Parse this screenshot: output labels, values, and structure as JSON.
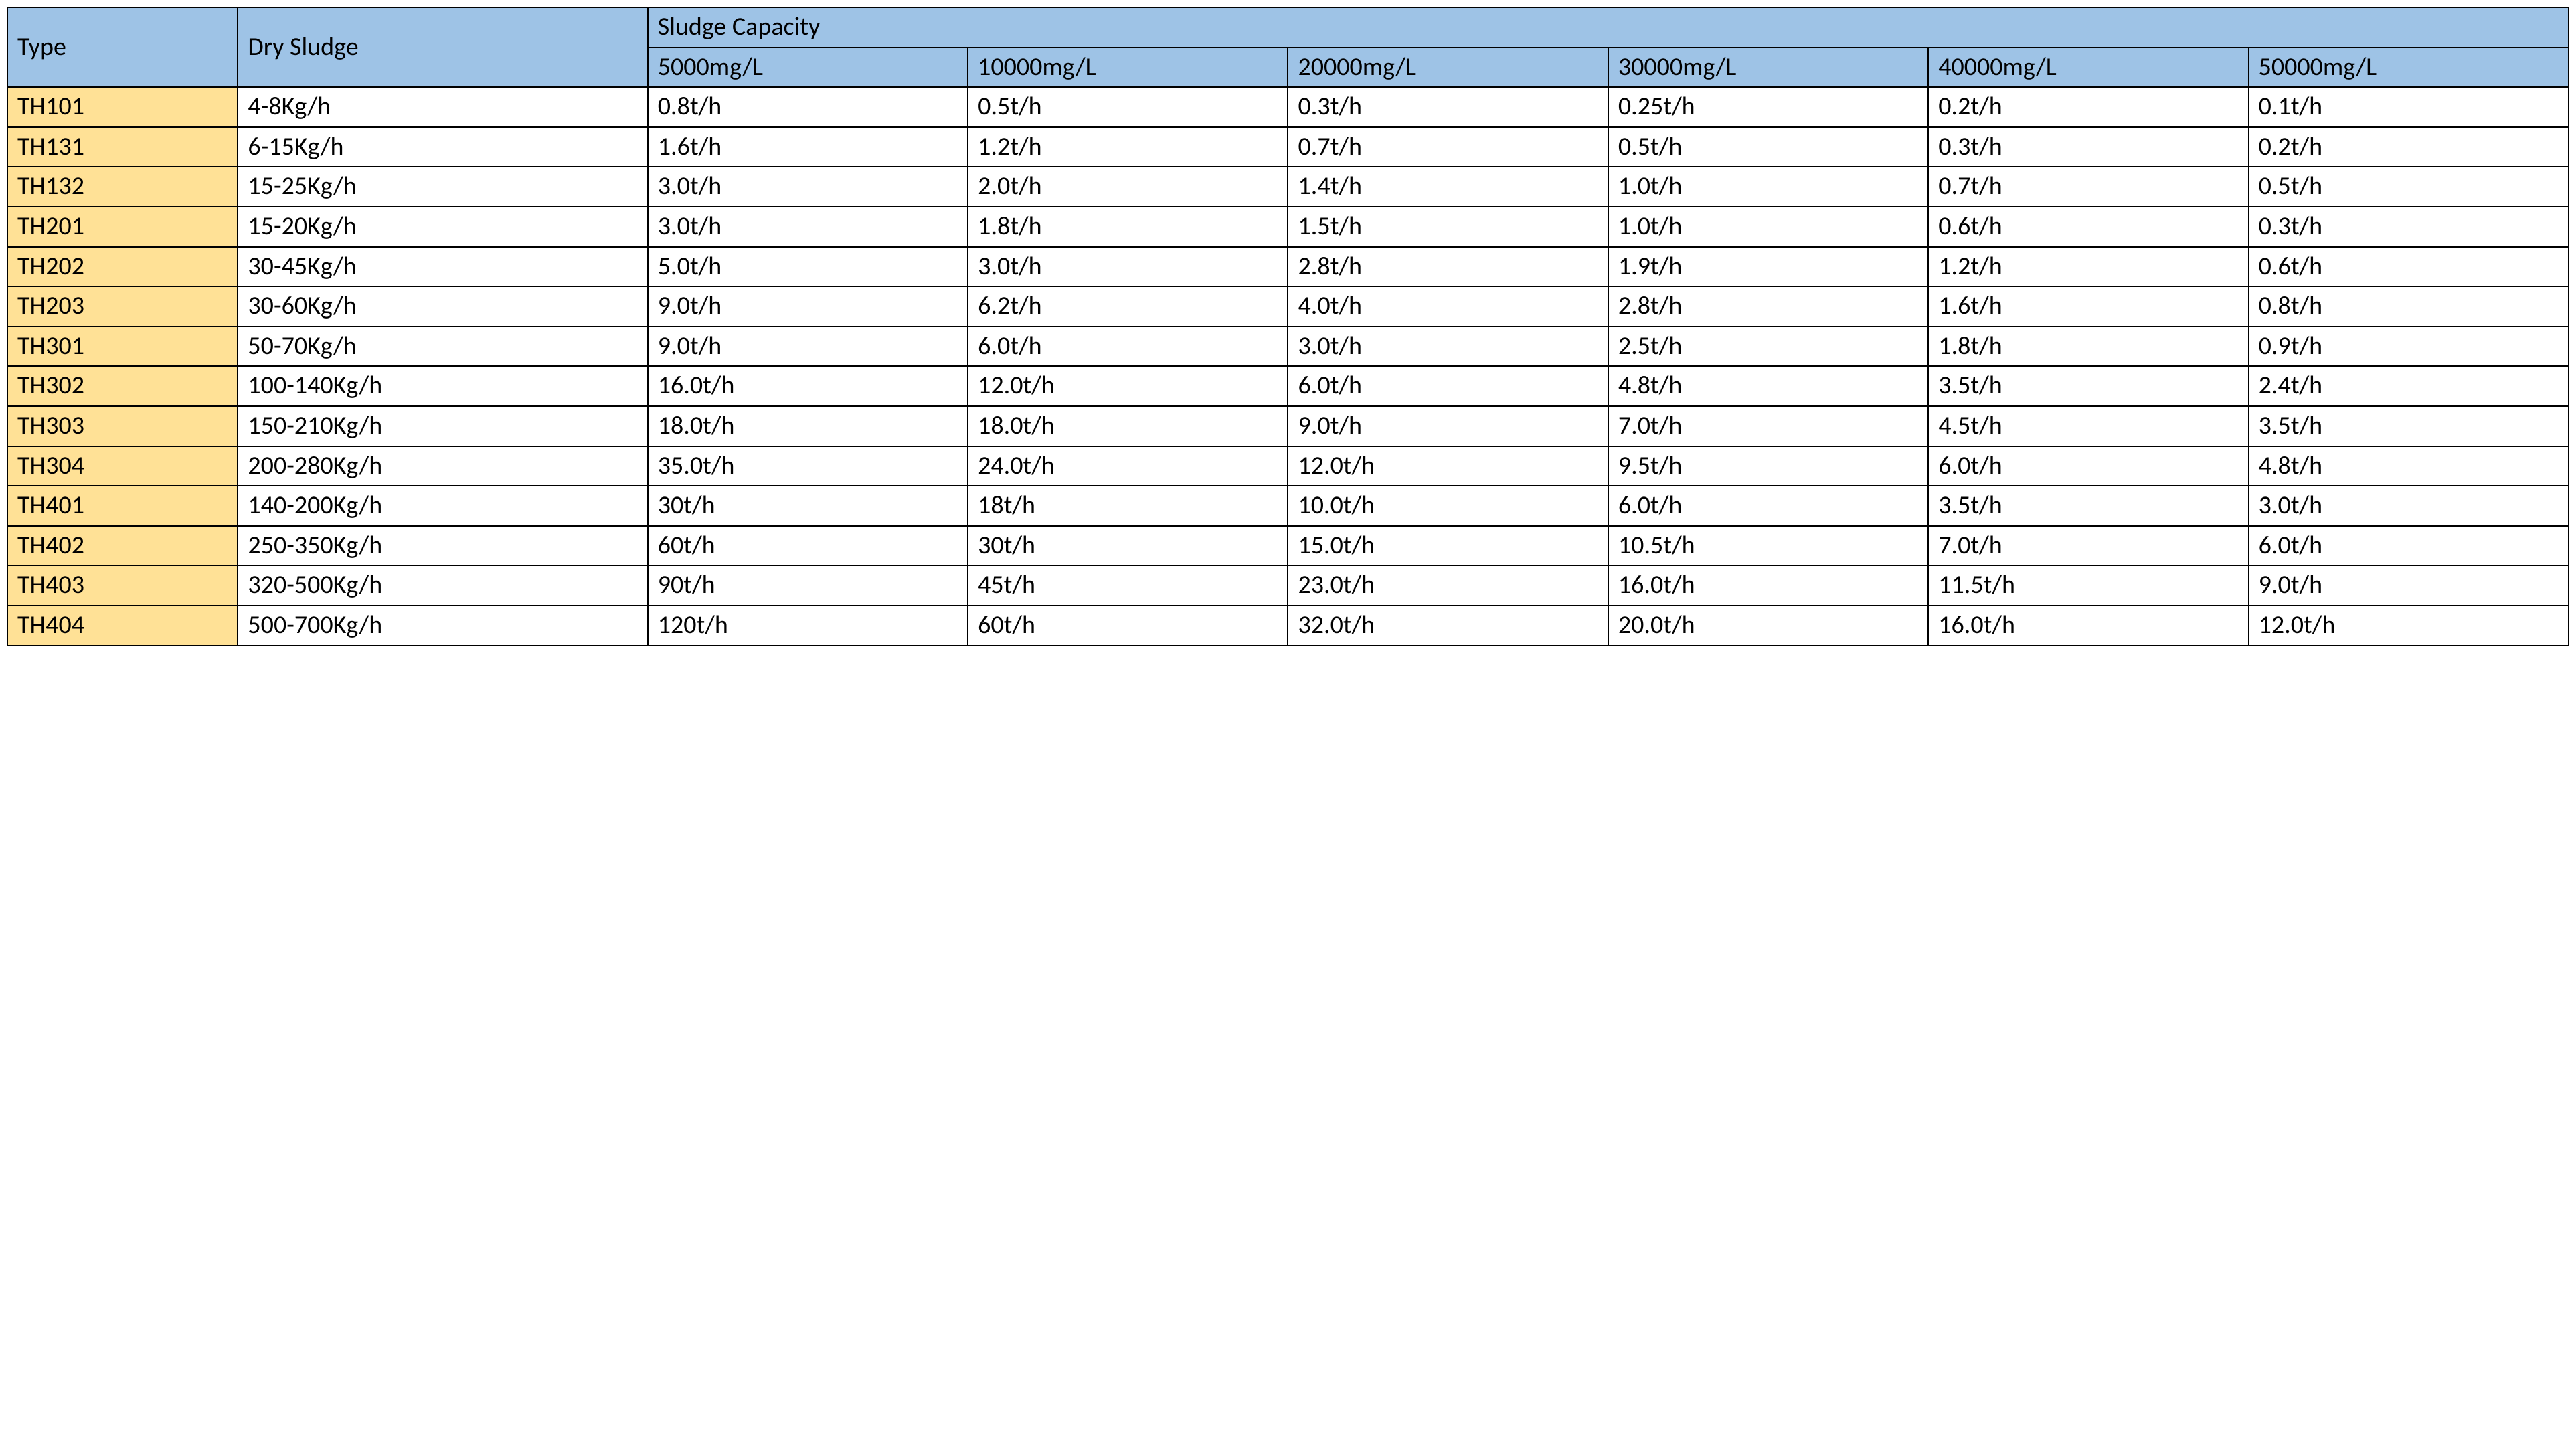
{
  "table": {
    "colors": {
      "header_bg": "#9ec3e6",
      "type_bg": "#ffe196",
      "border": "#000000",
      "text": "#000000",
      "page_bg": "#ffffff"
    },
    "fonts": {
      "base_family": "Calibri",
      "type_header_size_pt": 40,
      "dry_sludge_size_pt": 54,
      "capacity_title_size_pt": 42,
      "sub_header_size_pt": 30,
      "cell_size_pt": 38
    },
    "headers": {
      "type": "Type",
      "dry_sludge": "Dry Sludge",
      "capacity_title": "Sludge Capacity",
      "capacity_columns": [
        "5000mg/L",
        "10000mg/L",
        "20000mg/L",
        "30000mg/L",
        "40000mg/L",
        "50000mg/L"
      ]
    },
    "column_widths_pct": {
      "type": 9,
      "dry_sludge": 16,
      "capacity_each": 12.5
    },
    "rows": [
      {
        "type": "TH101",
        "dry": "4-8Kg/h",
        "cap": [
          "0.8t/h",
          "0.5t/h",
          "0.3t/h",
          "0.25t/h",
          "0.2t/h",
          "0.1t/h"
        ]
      },
      {
        "type": "TH131",
        "dry": "6-15Kg/h",
        "cap": [
          "1.6t/h",
          "1.2t/h",
          "0.7t/h",
          "0.5t/h",
          "0.3t/h",
          "0.2t/h"
        ]
      },
      {
        "type": "TH132",
        "dry": "15-25Kg/h",
        "cap": [
          "3.0t/h",
          "2.0t/h",
          "1.4t/h",
          "1.0t/h",
          "0.7t/h",
          "0.5t/h"
        ]
      },
      {
        "type": "TH201",
        "dry": "15-20Kg/h",
        "cap": [
          "3.0t/h",
          "1.8t/h",
          "1.5t/h",
          "1.0t/h",
          "0.6t/h",
          "0.3t/h"
        ]
      },
      {
        "type": "TH202",
        "dry": "30-45Kg/h",
        "cap": [
          "5.0t/h",
          "3.0t/h",
          "2.8t/h",
          "1.9t/h",
          "1.2t/h",
          "0.6t/h"
        ]
      },
      {
        "type": "TH203",
        "dry": "30-60Kg/h",
        "cap": [
          "9.0t/h",
          "6.2t/h",
          "4.0t/h",
          "2.8t/h",
          "1.6t/h",
          "0.8t/h"
        ]
      },
      {
        "type": "TH301",
        "dry": "50-70Kg/h",
        "cap": [
          "9.0t/h",
          "6.0t/h",
          "3.0t/h",
          "2.5t/h",
          "1.8t/h",
          "0.9t/h"
        ]
      },
      {
        "type": "TH302",
        "dry": "100-140Kg/h",
        "cap": [
          "16.0t/h",
          "12.0t/h",
          "6.0t/h",
          "4.8t/h",
          "3.5t/h",
          "2.4t/h"
        ]
      },
      {
        "type": "TH303",
        "dry": "150-210Kg/h",
        "cap": [
          "18.0t/h",
          "18.0t/h",
          "9.0t/h",
          "7.0t/h",
          "4.5t/h",
          "3.5t/h"
        ]
      },
      {
        "type": "TH304",
        "dry": "200-280Kg/h",
        "cap": [
          "35.0t/h",
          "24.0t/h",
          "12.0t/h",
          "9.5t/h",
          "6.0t/h",
          "4.8t/h"
        ]
      },
      {
        "type": "TH401",
        "dry": "140-200Kg/h",
        "cap": [
          "30t/h",
          "18t/h",
          "10.0t/h",
          "6.0t/h",
          "3.5t/h",
          "3.0t/h"
        ]
      },
      {
        "type": "TH402",
        "dry": "250-350Kg/h",
        "cap": [
          "60t/h",
          "30t/h",
          "15.0t/h",
          "10.5t/h",
          "7.0t/h",
          "6.0t/h"
        ]
      },
      {
        "type": "TH403",
        "dry": "320-500Kg/h",
        "cap": [
          "90t/h",
          "45t/h",
          "23.0t/h",
          "16.0t/h",
          "11.5t/h",
          "9.0t/h"
        ]
      },
      {
        "type": "TH404",
        "dry": "500-700Kg/h",
        "cap": [
          "120t/h",
          "60t/h",
          "32.0t/h",
          "20.0t/h",
          "16.0t/h",
          "12.0t/h"
        ]
      }
    ]
  }
}
